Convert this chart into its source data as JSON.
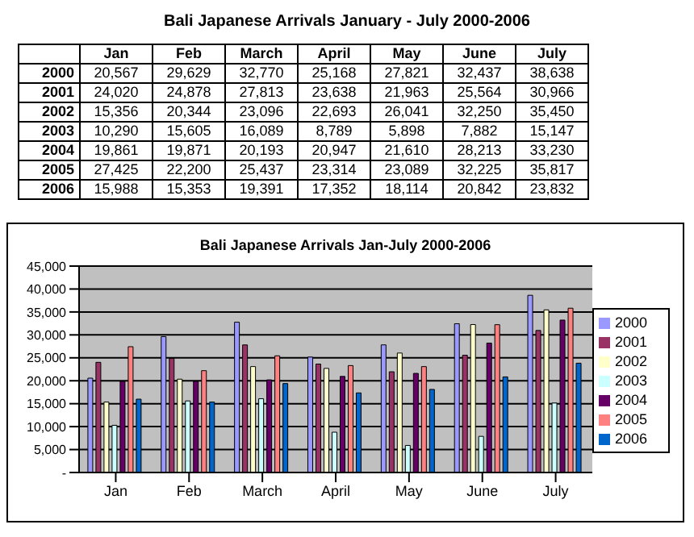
{
  "chart_data": {
    "type": "bar",
    "title": "Bali Japanese Arrivals January - July 2000-2006",
    "subtitle": "Bali Japanese Arrivals Jan-July 2000-2006",
    "categories": [
      "Jan",
      "Feb",
      "March",
      "April",
      "May",
      "June",
      "July"
    ],
    "series": [
      {
        "name": "2000",
        "color": "#9999ff",
        "values": [
          20567,
          29629,
          32770,
          25168,
          27821,
          32437,
          38638
        ],
        "value_labels": [
          "20,567",
          "29,629",
          "32,770",
          "25,168",
          "27,821",
          "32,437",
          "38,638"
        ]
      },
      {
        "name": "2001",
        "color": "#993366",
        "values": [
          24020,
          24878,
          27813,
          23638,
          21963,
          25564,
          30966
        ],
        "value_labels": [
          "24,020",
          "24,878",
          "27,813",
          "23,638",
          "21,963",
          "25,564",
          "30,966"
        ]
      },
      {
        "name": "2002",
        "color": "#ffffcc",
        "values": [
          15356,
          20344,
          23096,
          22693,
          26041,
          32250,
          35450
        ],
        "value_labels": [
          "15,356",
          "20,344",
          "23,096",
          "22,693",
          "26,041",
          "32,250",
          "35,450"
        ]
      },
      {
        "name": "2003",
        "color": "#ccffff",
        "values": [
          10290,
          15605,
          16089,
          8789,
          5898,
          7882,
          15147
        ],
        "value_labels": [
          "10,290",
          "15,605",
          "16,089",
          "8,789",
          "5,898",
          "7,882",
          "15,147"
        ]
      },
      {
        "name": "2004",
        "color": "#660066",
        "values": [
          19861,
          19871,
          20193,
          20947,
          21610,
          28213,
          33230
        ],
        "value_labels": [
          "19,861",
          "19,871",
          "20,193",
          "20,947",
          "21,610",
          "28,213",
          "33,230"
        ]
      },
      {
        "name": "2005",
        "color": "#ff8080",
        "values": [
          27425,
          22200,
          25437,
          23314,
          23089,
          32225,
          35817
        ],
        "value_labels": [
          "27,425",
          "22,200",
          "25,437",
          "23,314",
          "23,089",
          "32,225",
          "35,817"
        ]
      },
      {
        "name": "2006",
        "color": "#0066cc",
        "values": [
          15988,
          15353,
          19391,
          17352,
          18114,
          20842,
          23832
        ],
        "value_labels": [
          "15,988",
          "15,353",
          "19,391",
          "17,352",
          "18,114",
          "20,842",
          "23,832"
        ]
      }
    ],
    "ylim": [
      0,
      45000
    ],
    "yticks": [
      {
        "value": 0,
        "label": "-"
      },
      {
        "value": 5000,
        "label": "5,000"
      },
      {
        "value": 10000,
        "label": "10,000"
      },
      {
        "value": 15000,
        "label": "15,000"
      },
      {
        "value": 20000,
        "label": "20,000"
      },
      {
        "value": 25000,
        "label": "25,000"
      },
      {
        "value": 30000,
        "label": "30,000"
      },
      {
        "value": 35000,
        "label": "35,000"
      },
      {
        "value": 40000,
        "label": "40,000"
      },
      {
        "value": 45000,
        "label": "45,000"
      }
    ],
    "grid": "y",
    "legend": "right"
  }
}
